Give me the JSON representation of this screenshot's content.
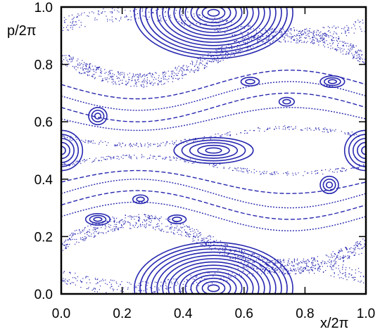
{
  "chart_data": {
    "type": "scatter",
    "title": "",
    "xlabel": "x/2π",
    "ylabel": "p/2π",
    "xlim": [
      0.0,
      1.0
    ],
    "ylim": [
      0.0,
      1.0
    ],
    "x_ticks": [
      0.0,
      0.2,
      0.4,
      0.6,
      0.8,
      1.0
    ],
    "y_ticks": [
      0.0,
      0.2,
      0.4,
      0.6,
      0.8,
      1.0
    ],
    "x_tick_labels": [
      "0.0",
      "0.2",
      "0.4",
      "0.6",
      "0.8",
      "1.0"
    ],
    "y_tick_labels": [
      "0.0",
      "0.2",
      "0.4",
      "0.6",
      "0.8",
      "1.0"
    ],
    "grid": false,
    "legend": "none",
    "color": "#2727b0",
    "regular_islands": [
      {
        "center": [
          0.5,
          0.98
        ],
        "semi_axes": [
          0.26,
          0.16
        ],
        "n_curves": 14
      },
      {
        "center": [
          0.5,
          0.02
        ],
        "semi_axes": [
          0.26,
          0.16
        ],
        "n_curves": 14
      },
      {
        "center": [
          0.5,
          0.5
        ],
        "semi_axes": [
          0.13,
          0.045
        ],
        "n_curves": 5
      },
      {
        "center": [
          0.0,
          0.5
        ],
        "semi_axes": [
          0.07,
          0.07
        ],
        "n_curves": 5
      },
      {
        "center": [
          1.0,
          0.5
        ],
        "semi_axes": [
          0.07,
          0.07
        ],
        "n_curves": 5
      },
      {
        "center": [
          0.12,
          0.26
        ],
        "semi_axes": [
          0.04,
          0.02
        ],
        "n_curves": 3
      },
      {
        "center": [
          0.89,
          0.74
        ],
        "semi_axes": [
          0.04,
          0.02
        ],
        "n_curves": 3
      },
      {
        "center": [
          0.88,
          0.38
        ],
        "semi_axes": [
          0.03,
          0.03
        ],
        "n_curves": 3
      },
      {
        "center": [
          0.12,
          0.62
        ],
        "semi_axes": [
          0.03,
          0.03
        ],
        "n_curves": 3
      },
      {
        "center": [
          0.26,
          0.33
        ],
        "semi_axes": [
          0.025,
          0.015
        ],
        "n_curves": 2
      },
      {
        "center": [
          0.74,
          0.67
        ],
        "semi_axes": [
          0.025,
          0.015
        ],
        "n_curves": 2
      },
      {
        "center": [
          0.62,
          0.74
        ],
        "semi_axes": [
          0.03,
          0.015
        ],
        "n_curves": 2
      },
      {
        "center": [
          0.38,
          0.26
        ],
        "semi_axes": [
          0.03,
          0.015
        ],
        "n_curves": 2
      }
    ],
    "invariant_curves": [
      {
        "p0": 0.27,
        "amplitude": 0.05,
        "phase": 0.0
      },
      {
        "p0": 0.31,
        "amplitude": 0.05,
        "phase": 0.0
      },
      {
        "p0": 0.35,
        "amplitude": 0.05,
        "phase": 0.0
      },
      {
        "p0": 0.39,
        "amplitude": 0.04,
        "phase": 0.0
      },
      {
        "p0": 0.61,
        "amplitude": 0.04,
        "phase": 0.5
      },
      {
        "p0": 0.65,
        "amplitude": 0.05,
        "phase": 0.5
      },
      {
        "p0": 0.69,
        "amplitude": 0.05,
        "phase": 0.5
      },
      {
        "p0": 0.73,
        "amplitude": 0.05,
        "phase": 0.5
      }
    ],
    "chaotic_bands": [
      {
        "p0": 0.175,
        "amplitude": 0.08,
        "phase": 0.0,
        "width": 0.05,
        "n_points": 900
      },
      {
        "p0": 0.825,
        "amplitude": 0.08,
        "phase": 0.5,
        "width": 0.05,
        "n_points": 900
      },
      {
        "p0": 0.45,
        "amplitude": 0.03,
        "phase": 0.0,
        "width": 0.015,
        "n_points": 250
      },
      {
        "p0": 0.55,
        "amplitude": 0.03,
        "phase": 0.5,
        "width": 0.015,
        "n_points": 250
      },
      {
        "p0": 0.94,
        "amplitude": 0.04,
        "phase": 0.0,
        "width": 0.05,
        "n_points": 400
      },
      {
        "p0": 0.06,
        "amplitude": 0.04,
        "phase": 0.5,
        "width": 0.05,
        "n_points": 400
      }
    ]
  }
}
